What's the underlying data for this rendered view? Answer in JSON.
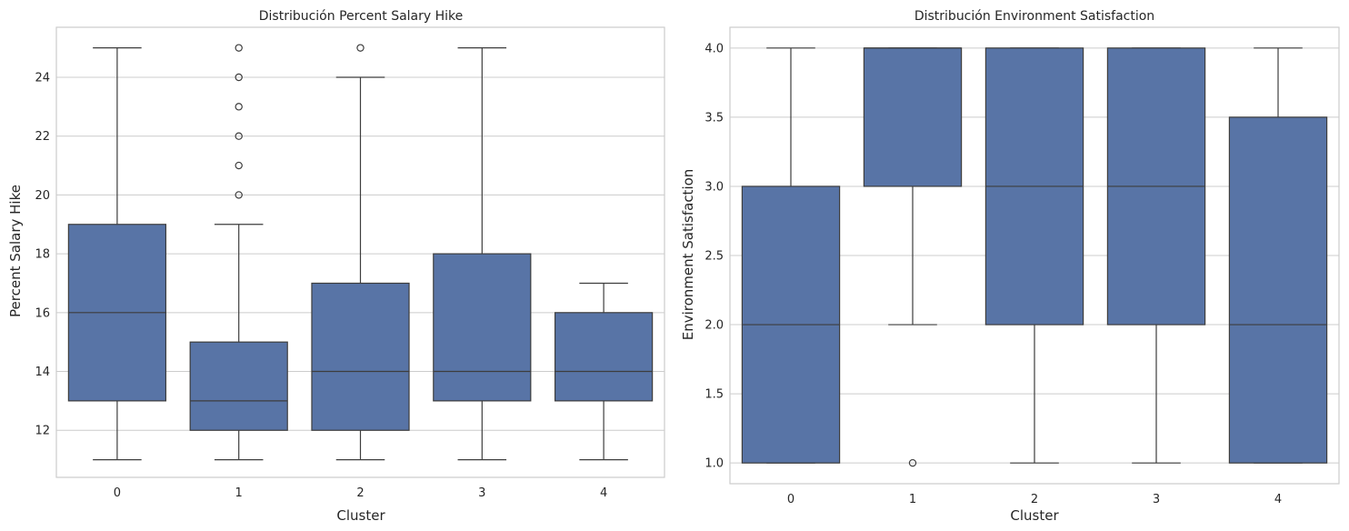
{
  "chart_data": [
    {
      "type": "boxplot",
      "title": "Distribución Percent Salary Hike",
      "xlabel": "Cluster",
      "ylabel": "Percent Salary Hike",
      "categories": [
        "0",
        "1",
        "2",
        "3",
        "4"
      ],
      "ylim": [
        10.4,
        25.7
      ],
      "yticks": [
        12,
        14,
        16,
        18,
        20,
        22,
        24
      ],
      "ytick_labels": [
        "12",
        "14",
        "16",
        "18",
        "20",
        "22",
        "24"
      ],
      "grid": true,
      "box_color": "#5874a6",
      "boxes": [
        {
          "whislo": 11,
          "q1": 13,
          "med": 16,
          "q3": 19,
          "whishi": 25,
          "fliers": []
        },
        {
          "whislo": 11,
          "q1": 12,
          "med": 13,
          "q3": 15,
          "whishi": 19,
          "fliers": [
            20,
            21,
            22,
            23,
            24,
            25
          ]
        },
        {
          "whislo": 11,
          "q1": 12,
          "med": 14,
          "q3": 17,
          "whishi": 24,
          "fliers": [
            25
          ]
        },
        {
          "whislo": 11,
          "q1": 13,
          "med": 14,
          "q3": 18,
          "whishi": 25,
          "fliers": []
        },
        {
          "whislo": 11,
          "q1": 13,
          "med": 14,
          "q3": 16,
          "whishi": 17,
          "fliers": []
        }
      ]
    },
    {
      "type": "boxplot",
      "title": "Distribución Environment Satisfaction",
      "xlabel": "Cluster",
      "ylabel": "Environment Satisfaction",
      "categories": [
        "0",
        "1",
        "2",
        "3",
        "4"
      ],
      "ylim": [
        0.85,
        4.15
      ],
      "yticks": [
        1.0,
        1.5,
        2.0,
        2.5,
        3.0,
        3.5,
        4.0
      ],
      "ytick_labels": [
        "1.0",
        "1.5",
        "2.0",
        "2.5",
        "3.0",
        "3.5",
        "4.0"
      ],
      "grid": true,
      "box_color": "#5874a6",
      "boxes": [
        {
          "whislo": 1,
          "q1": 1,
          "med": 2,
          "q3": 3,
          "whishi": 4,
          "fliers": []
        },
        {
          "whislo": 2,
          "q1": 3,
          "med": 4,
          "q3": 4,
          "whishi": 4,
          "fliers": [
            1
          ]
        },
        {
          "whislo": 1,
          "q1": 2,
          "med": 3,
          "q3": 4,
          "whishi": 4,
          "fliers": []
        },
        {
          "whislo": 1,
          "q1": 2,
          "med": 3,
          "q3": 4,
          "whishi": 4,
          "fliers": []
        },
        {
          "whislo": 1,
          "q1": 1,
          "med": 2,
          "q3": 3.5,
          "whishi": 4,
          "fliers": []
        }
      ]
    }
  ]
}
